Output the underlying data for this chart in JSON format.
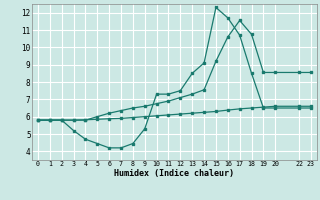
{
  "bg_color": "#cce8e4",
  "line_color": "#1a7a6e",
  "grid_color": "#ffffff",
  "xlabel": "Humidex (Indice chaleur)",
  "xlim": [
    -0.5,
    23.5
  ],
  "ylim": [
    3.5,
    12.5
  ],
  "yticks": [
    4,
    5,
    6,
    7,
    8,
    9,
    10,
    11,
    12
  ],
  "xticks": [
    0,
    1,
    2,
    3,
    4,
    5,
    6,
    7,
    8,
    9,
    10,
    11,
    12,
    13,
    14,
    15,
    16,
    17,
    18,
    19,
    20,
    22,
    23
  ],
  "xtick_labels": [
    "0",
    "1",
    "2",
    "3",
    "4",
    "5",
    "6",
    "7",
    "8",
    "9",
    "10",
    "11",
    "12",
    "13",
    "14",
    "15",
    "16",
    "17",
    "18",
    "19",
    "20",
    "22",
    "23"
  ],
  "line1_x": [
    0,
    1,
    2,
    3,
    4,
    5,
    6,
    7,
    8,
    9,
    10,
    11,
    12,
    13,
    14,
    15,
    16,
    17,
    18,
    19,
    20,
    22,
    23
  ],
  "line1_y": [
    5.8,
    5.8,
    5.8,
    5.2,
    4.7,
    4.45,
    4.2,
    4.2,
    4.45,
    5.3,
    7.3,
    7.3,
    7.5,
    8.5,
    9.1,
    12.3,
    11.7,
    10.7,
    8.5,
    6.5,
    6.5,
    6.5,
    6.5
  ],
  "line2_x": [
    0,
    1,
    2,
    3,
    4,
    5,
    6,
    7,
    8,
    9,
    10,
    11,
    12,
    13,
    14,
    15,
    16,
    17,
    18,
    19,
    20,
    22,
    23
  ],
  "line2_y": [
    5.8,
    5.8,
    5.8,
    5.8,
    5.8,
    6.0,
    6.2,
    6.35,
    6.5,
    6.6,
    6.75,
    6.9,
    7.1,
    7.3,
    7.55,
    9.2,
    10.6,
    11.55,
    10.75,
    8.55,
    8.55,
    8.55,
    8.55
  ],
  "line3_x": [
    0,
    1,
    2,
    3,
    4,
    5,
    6,
    7,
    8,
    9,
    10,
    11,
    12,
    13,
    14,
    15,
    16,
    17,
    18,
    19,
    20,
    22,
    23
  ],
  "line3_y": [
    5.8,
    5.8,
    5.8,
    5.8,
    5.82,
    5.85,
    5.88,
    5.9,
    5.95,
    6.0,
    6.05,
    6.1,
    6.15,
    6.2,
    6.25,
    6.3,
    6.38,
    6.45,
    6.5,
    6.55,
    6.6,
    6.6,
    6.6
  ]
}
